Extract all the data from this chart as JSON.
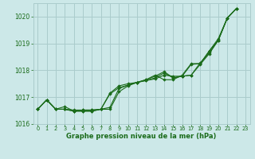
{
  "title": "Graphe pression niveau de la mer (hPa)",
  "background_color": "#cce8e8",
  "grid_color": "#aacccc",
  "line_color": "#1a6b1a",
  "marker_color": "#1a6b1a",
  "ylim": [
    1016.0,
    1020.5
  ],
  "xlim": [
    -0.5,
    23.5
  ],
  "yticks": [
    1016,
    1017,
    1018,
    1019,
    1020
  ],
  "xticks": [
    0,
    1,
    2,
    3,
    4,
    5,
    6,
    7,
    8,
    9,
    10,
    11,
    12,
    13,
    14,
    15,
    16,
    17,
    18,
    19,
    20,
    21,
    22,
    23
  ],
  "series": [
    {
      "x": [
        0,
        1,
        2,
        3,
        4,
        5,
        6,
        7,
        8,
        9,
        10,
        11,
        12,
        13,
        14,
        15,
        16,
        17,
        18,
        19,
        20,
        21,
        22
      ],
      "y": [
        1016.55,
        1016.9,
        1016.55,
        1016.65,
        1016.48,
        1016.48,
        1016.48,
        1016.55,
        1016.55,
        1017.2,
        1017.42,
        1017.55,
        1017.62,
        1017.68,
        1017.82,
        1017.78,
        1017.78,
        1017.82,
        1018.22,
        1018.62,
        1019.12,
        1019.95,
        1020.3
      ]
    },
    {
      "x": [
        0,
        1,
        2,
        3,
        4,
        5,
        6,
        7,
        8,
        9,
        10,
        11,
        12,
        13,
        14,
        15,
        16,
        17,
        18,
        19,
        20,
        21,
        22
      ],
      "y": [
        1016.55,
        1016.9,
        1016.55,
        1016.55,
        1016.48,
        1016.48,
        1016.48,
        1016.55,
        1016.62,
        1017.32,
        1017.45,
        1017.55,
        1017.62,
        1017.72,
        1017.9,
        1017.72,
        1017.78,
        1017.82,
        1018.28,
        1018.65,
        1019.12,
        1019.95,
        1020.3
      ]
    },
    {
      "x": [
        0,
        1,
        2,
        3,
        4,
        5,
        6,
        7,
        8,
        9,
        10,
        11,
        12,
        13,
        14,
        15,
        16,
        17,
        18,
        19,
        20,
        21,
        22
      ],
      "y": [
        1016.55,
        1016.9,
        1016.55,
        1016.55,
        1016.48,
        1016.52,
        1016.52,
        1016.55,
        1017.12,
        1017.35,
        1017.45,
        1017.55,
        1017.65,
        1017.78,
        1017.95,
        1017.72,
        1017.78,
        1018.22,
        1018.25,
        1018.72,
        1019.12,
        1019.95,
        1020.3
      ]
    },
    {
      "x": [
        0,
        1,
        2,
        3,
        4,
        5,
        6,
        7,
        8,
        9,
        10,
        11,
        12,
        13,
        14,
        15,
        16,
        17,
        18,
        19,
        20,
        21,
        22
      ],
      "y": [
        1016.55,
        1016.9,
        1016.55,
        1016.55,
        1016.52,
        1016.52,
        1016.52,
        1016.55,
        1017.15,
        1017.42,
        1017.5,
        1017.55,
        1017.65,
        1017.82,
        1017.65,
        1017.65,
        1017.82,
        1018.25,
        1018.25,
        1018.72,
        1019.18,
        1019.95,
        1020.3
      ]
    }
  ]
}
